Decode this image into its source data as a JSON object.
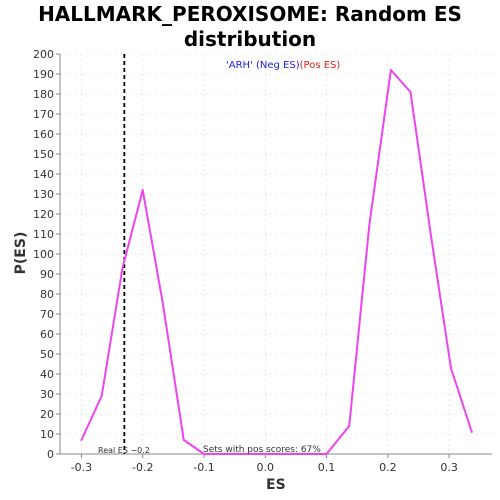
{
  "chart_data": {
    "type": "line",
    "title_line1": "HALLMARK_PEROXISOME: Random ES",
    "title_line2": "distribution",
    "xlabel": "ES",
    "ylabel": "P(ES)",
    "xlim": [
      -0.335,
      0.37
    ],
    "ylim": [
      0,
      200
    ],
    "x_ticks": [
      -0.3,
      -0.2,
      -0.1,
      0.0,
      0.1,
      0.2,
      0.3
    ],
    "x_tick_labels": [
      "-0.3",
      "-0.2",
      "-0.1",
      "0.0",
      "0.1",
      "0.2",
      "0.3"
    ],
    "y_ticks": [
      0,
      10,
      20,
      30,
      40,
      50,
      60,
      70,
      80,
      90,
      100,
      110,
      120,
      130,
      140,
      150,
      160,
      170,
      180,
      190,
      200
    ],
    "grid": true,
    "series": [
      {
        "color": "#ee44ee",
        "x": [
          -0.3,
          -0.267,
          -0.233,
          -0.2,
          -0.167,
          -0.133,
          -0.1,
          -0.067,
          -0.033,
          0.0,
          0.033,
          0.067,
          0.1,
          0.137,
          0.17,
          0.205,
          0.237,
          0.27,
          0.303,
          0.337
        ],
        "y": [
          7,
          29,
          93,
          132,
          75,
          7,
          0,
          0,
          0,
          0,
          0,
          0,
          0,
          14,
          115,
          192,
          181,
          110,
          43,
          11
        ]
      }
    ],
    "real_es": -0.23,
    "legend": {
      "neg_text": "'ARH' (Neg ES)",
      "pos_text": "(Pos ES)",
      "neg_color": "#2222dd",
      "pos_color": "#dd2222"
    },
    "annotations": {
      "real_es_label": "Real ES −0.2",
      "sets_text": "Sets with pos scores: 67%"
    }
  }
}
